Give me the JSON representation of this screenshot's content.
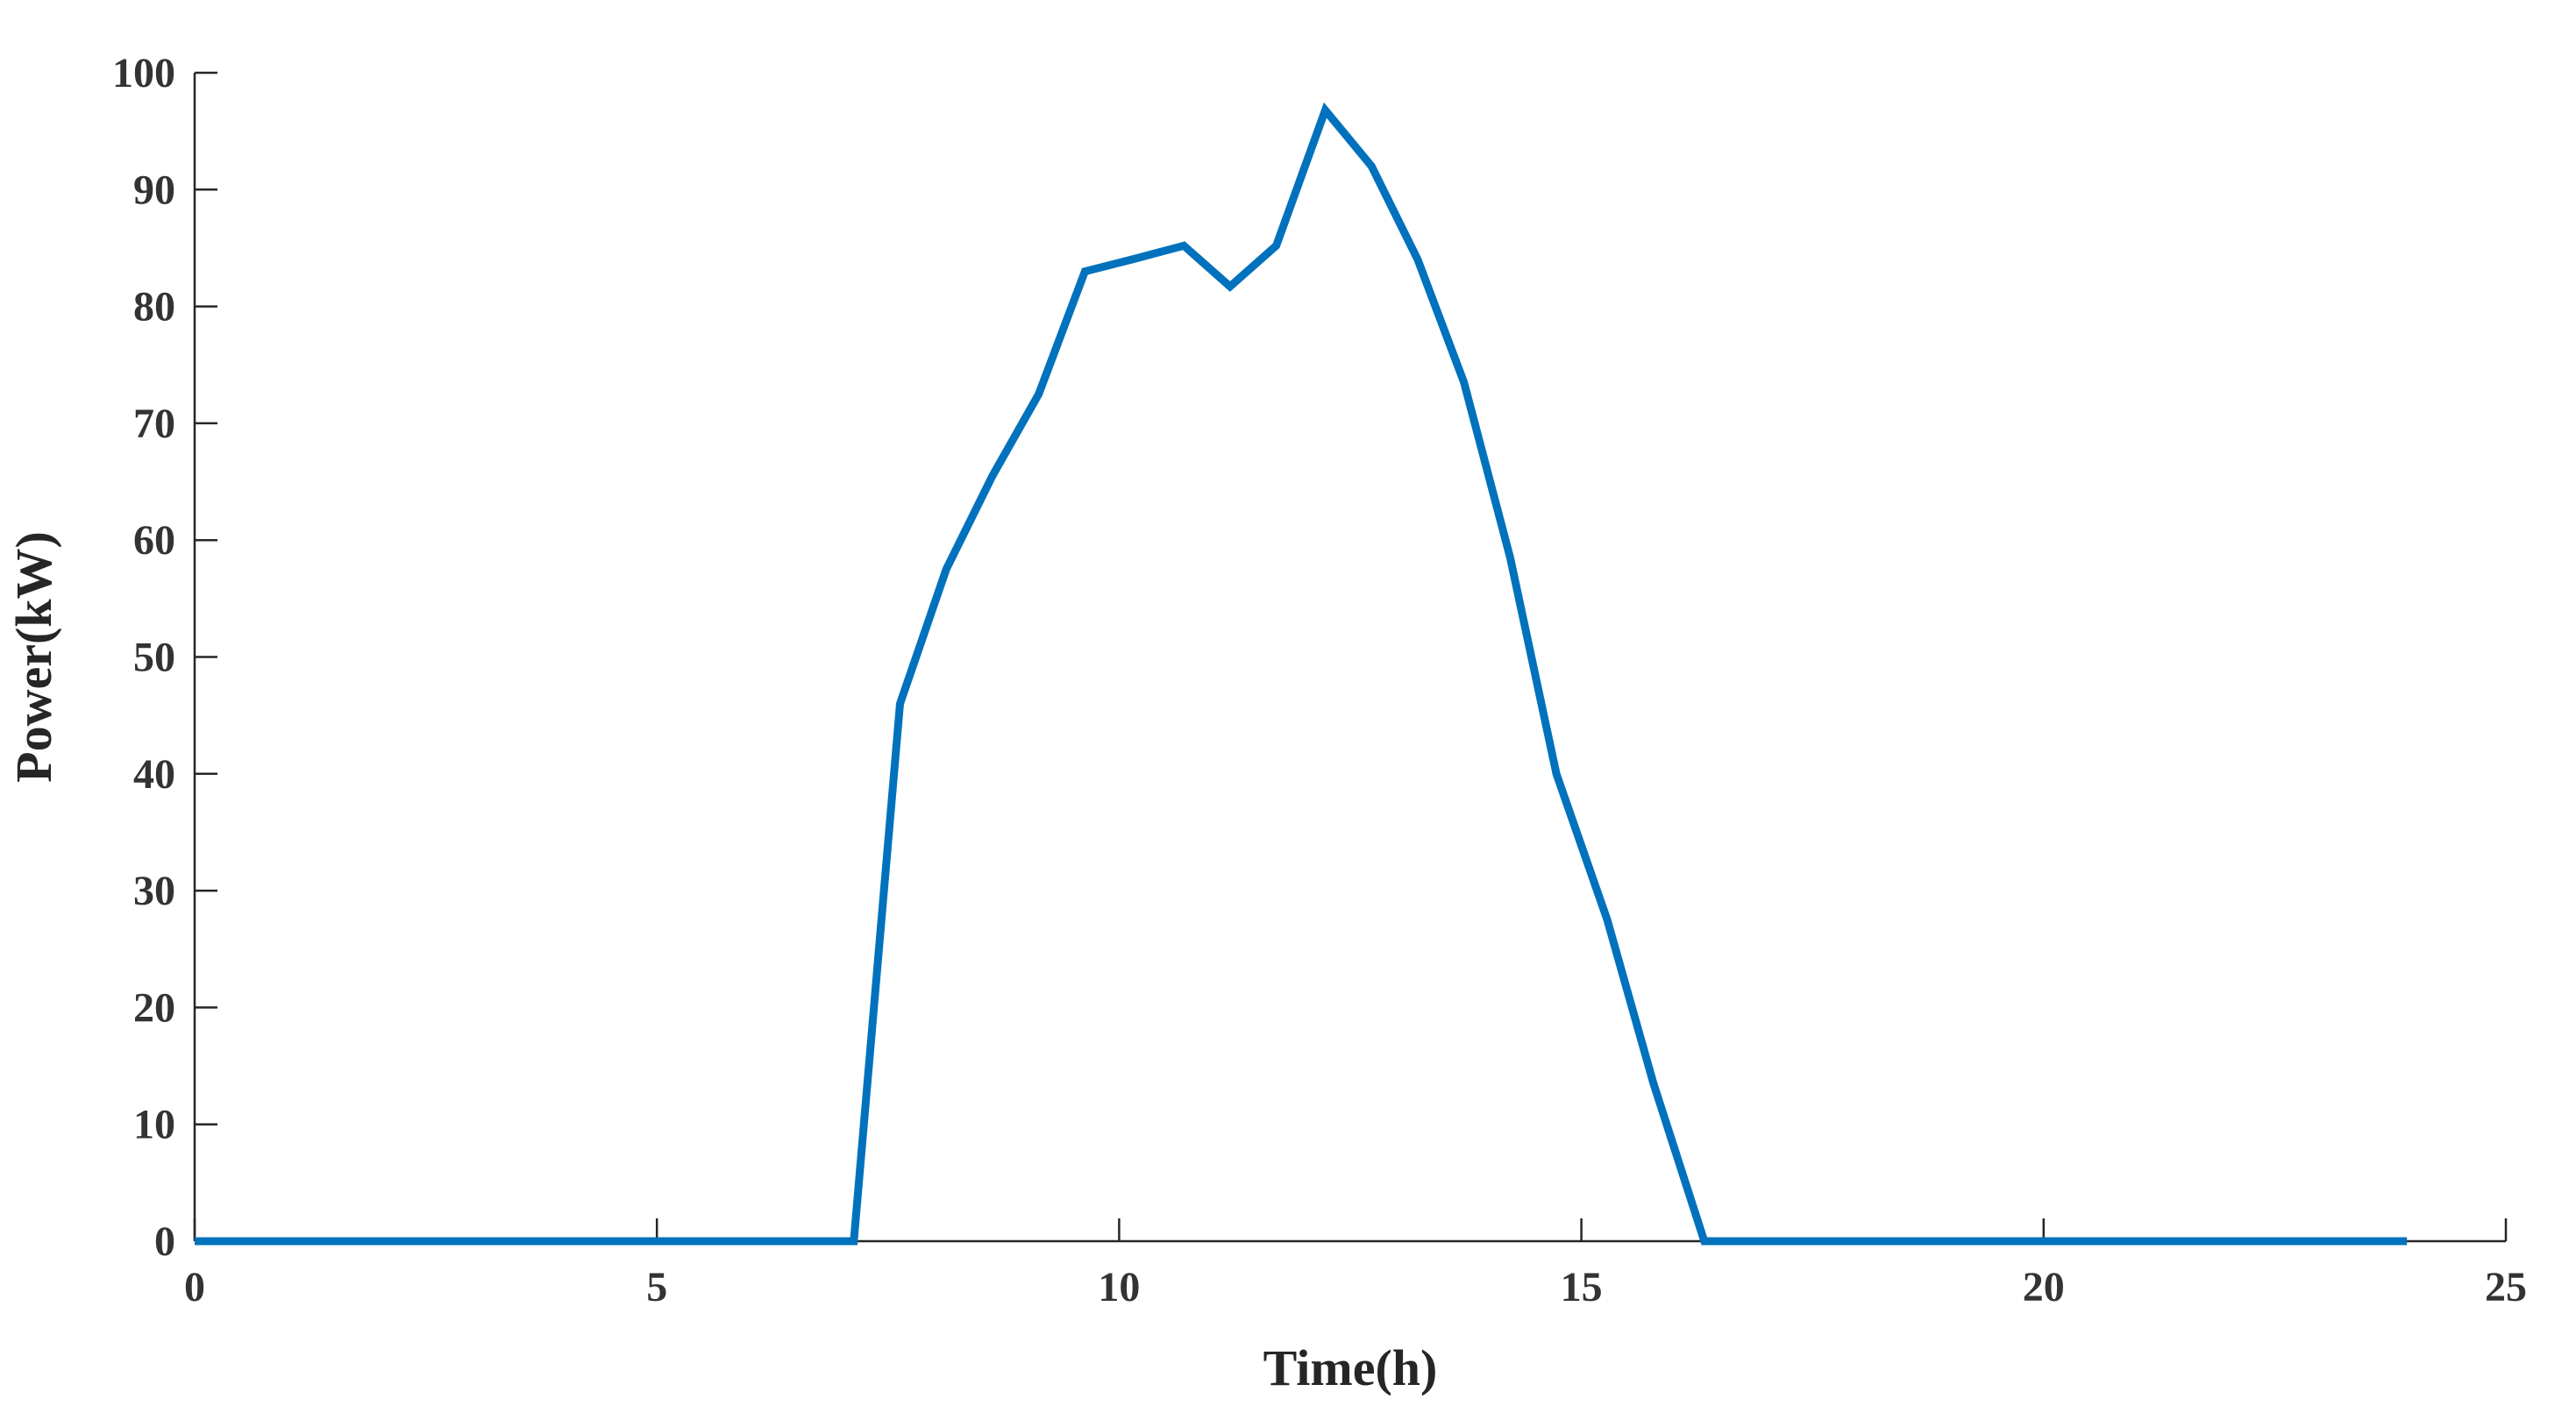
{
  "chart_data": {
    "type": "line",
    "title": "",
    "xlabel": "Time(h)",
    "ylabel": "Power(kW)",
    "xlim": [
      0,
      25
    ],
    "ylim": [
      0,
      100
    ],
    "xticks": [
      0,
      5,
      10,
      15,
      20,
      25
    ],
    "yticks": [
      0,
      10,
      20,
      30,
      40,
      50,
      60,
      70,
      80,
      90,
      100
    ],
    "grid": false,
    "legend": "none",
    "colors": {
      "line": "#0072BD",
      "axis": "#262626",
      "tick_text": "#333333"
    },
    "series": [
      {
        "x": [
          0,
          7.13,
          7.63,
          8.13,
          8.63,
          9.13,
          9.63,
          10.13,
          10.7,
          11.2,
          11.7,
          12.23,
          12.73,
          13.23,
          13.73,
          14.23,
          14.73,
          15.28,
          15.78,
          16.33,
          16.83,
          23.93
        ],
        "y": [
          0,
          0,
          46,
          57.5,
          65.5,
          72.5,
          83,
          84,
          85.2,
          81.7,
          85.2,
          96.8,
          92,
          84,
          73.5,
          58.5,
          40,
          27.5,
          13.5,
          0,
          0,
          0
        ]
      }
    ]
  }
}
